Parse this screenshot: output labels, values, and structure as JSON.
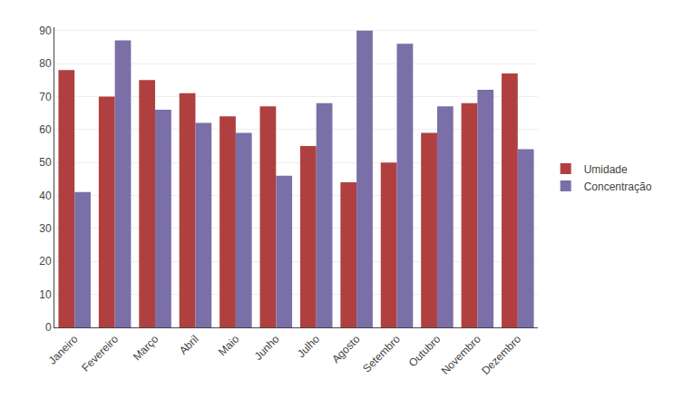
{
  "chart_data": {
    "type": "bar",
    "categories": [
      "Janeiro",
      "Fevereiro",
      "Março",
      "Abril",
      "Maio",
      "Junho",
      "Julho",
      "Agosto",
      "Setembro",
      "Outubro",
      "Novembro",
      "Dezembro"
    ],
    "series": [
      {
        "name": "Umidade",
        "color": "#B04040",
        "values": [
          78,
          70,
          75,
          71,
          64,
          67,
          55,
          44,
          50,
          59,
          68,
          77
        ]
      },
      {
        "name": "Concentração",
        "color": "#7B6FA8",
        "values": [
          41,
          87,
          66,
          62,
          59,
          46,
          68,
          90,
          86,
          67,
          72,
          54
        ]
      }
    ],
    "ylim": [
      0,
      91
    ],
    "yticks": [
      0,
      10,
      20,
      30,
      40,
      50,
      60,
      70,
      80,
      90
    ],
    "grid": true,
    "legend": "right"
  }
}
